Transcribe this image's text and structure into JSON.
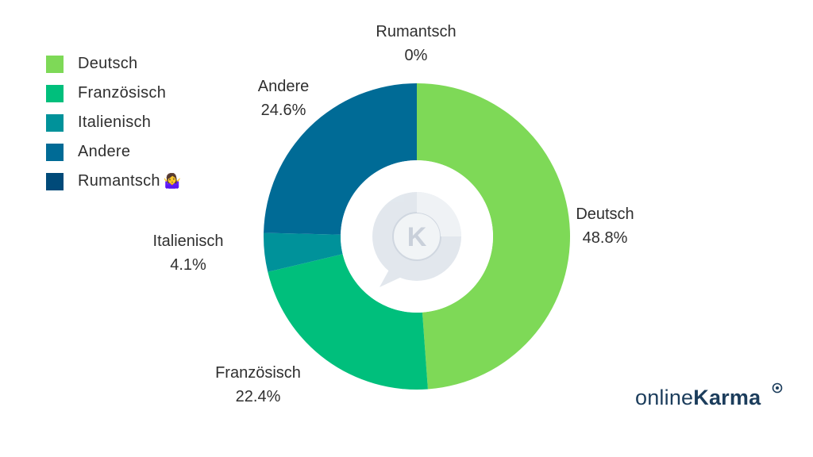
{
  "chart_data": {
    "type": "pie",
    "variant": "donut",
    "slices": [
      {
        "label": "Deutsch",
        "value": 48.8,
        "value_label": "48.8%",
        "color": "#7ed957"
      },
      {
        "label": "Französisch",
        "value": 22.4,
        "value_label": "22.4%",
        "color": "#00bf7c"
      },
      {
        "label": "Italienisch",
        "value": 4.1,
        "value_label": "4.1%",
        "color": "#00929a"
      },
      {
        "label": "Andere",
        "value": 24.6,
        "value_label": "24.6%",
        "color": "#006b96"
      },
      {
        "label": "Rumantsch",
        "value": 0,
        "value_label": "0%",
        "color": "#004a79"
      }
    ],
    "legend": {
      "placement": "top-left",
      "entries": [
        "Deutsch",
        "Französisch",
        "Italienisch",
        "Andere",
        "Rumantsch"
      ],
      "emoji": "🤷‍♀️"
    },
    "center_icon": "chat-bubble-k-logo-icon"
  },
  "brand": {
    "regular": "online",
    "bold": "Karma",
    "icon": "eye-badge-icon",
    "color": "#1c3d5c"
  }
}
